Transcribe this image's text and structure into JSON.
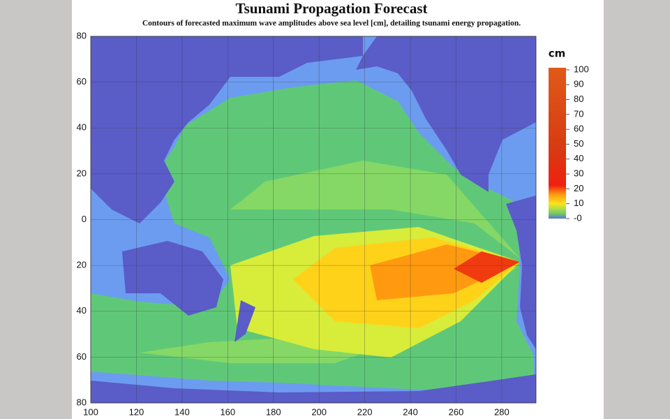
{
  "map": {
    "title": "Tsunami Propagation Forecast",
    "subtitle": "Contours of forecasted maximum wave amplitudes above sea level [cm], detailing tsunami energy propagation.",
    "xlim": [
      100,
      295
    ],
    "ylim": [
      -80,
      80
    ],
    "xticks": [
      100,
      120,
      140,
      160,
      180,
      200,
      220,
      240,
      260,
      280
    ],
    "yticks": [
      80,
      60,
      40,
      20,
      0,
      {
        "value": -20,
        "label": "20"
      },
      {
        "value": -40,
        "label": "40"
      },
      {
        "value": -60,
        "label": "60"
      },
      {
        "value": -80,
        "label": "80"
      }
    ],
    "colorbar": {
      "label": "cm",
      "lim": [
        0,
        100
      ],
      "ticks": [
        100,
        90,
        80,
        70,
        60,
        50,
        40,
        30,
        20,
        10,
        {
          "value": 0,
          "label": "-0"
        }
      ]
    }
  }
}
